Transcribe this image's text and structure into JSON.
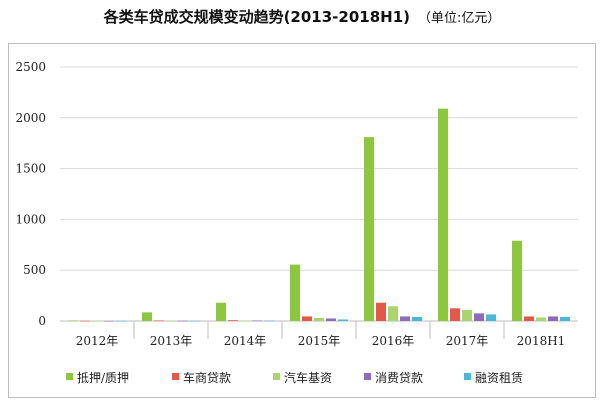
{
  "chart_data": {
    "type": "bar",
    "title": "各类车贷成交规模变动趋势(2013-2018H1)",
    "unit_note": "（单位:亿元）",
    "categories": [
      "2012年",
      "2013年",
      "2014年",
      "2015年",
      "2016年",
      "2017年",
      "2018H1"
    ],
    "ylim": [
      0,
      2500
    ],
    "yticks": [
      0,
      500,
      1000,
      1500,
      2000,
      2500
    ],
    "grid": true,
    "legend_position": "bottom",
    "series": [
      {
        "name": "抵押/质押",
        "color": "#8dc63f",
        "values": [
          5,
          85,
          180,
          555,
          1810,
          2090,
          790
        ]
      },
      {
        "name": "车商贷款",
        "color": "#e2594b",
        "values": [
          2,
          5,
          8,
          45,
          180,
          125,
          45
        ]
      },
      {
        "name": "汽车基资",
        "color": "#a9d46f",
        "values": [
          1,
          3,
          5,
          30,
          145,
          110,
          35
        ]
      },
      {
        "name": "消费贷款",
        "color": "#8e6bb8",
        "values": [
          1,
          3,
          5,
          25,
          45,
          75,
          45
        ]
      },
      {
        "name": "融资租赁",
        "color": "#4bb6d6",
        "values": [
          1,
          2,
          4,
          15,
          40,
          65,
          40
        ]
      }
    ]
  }
}
